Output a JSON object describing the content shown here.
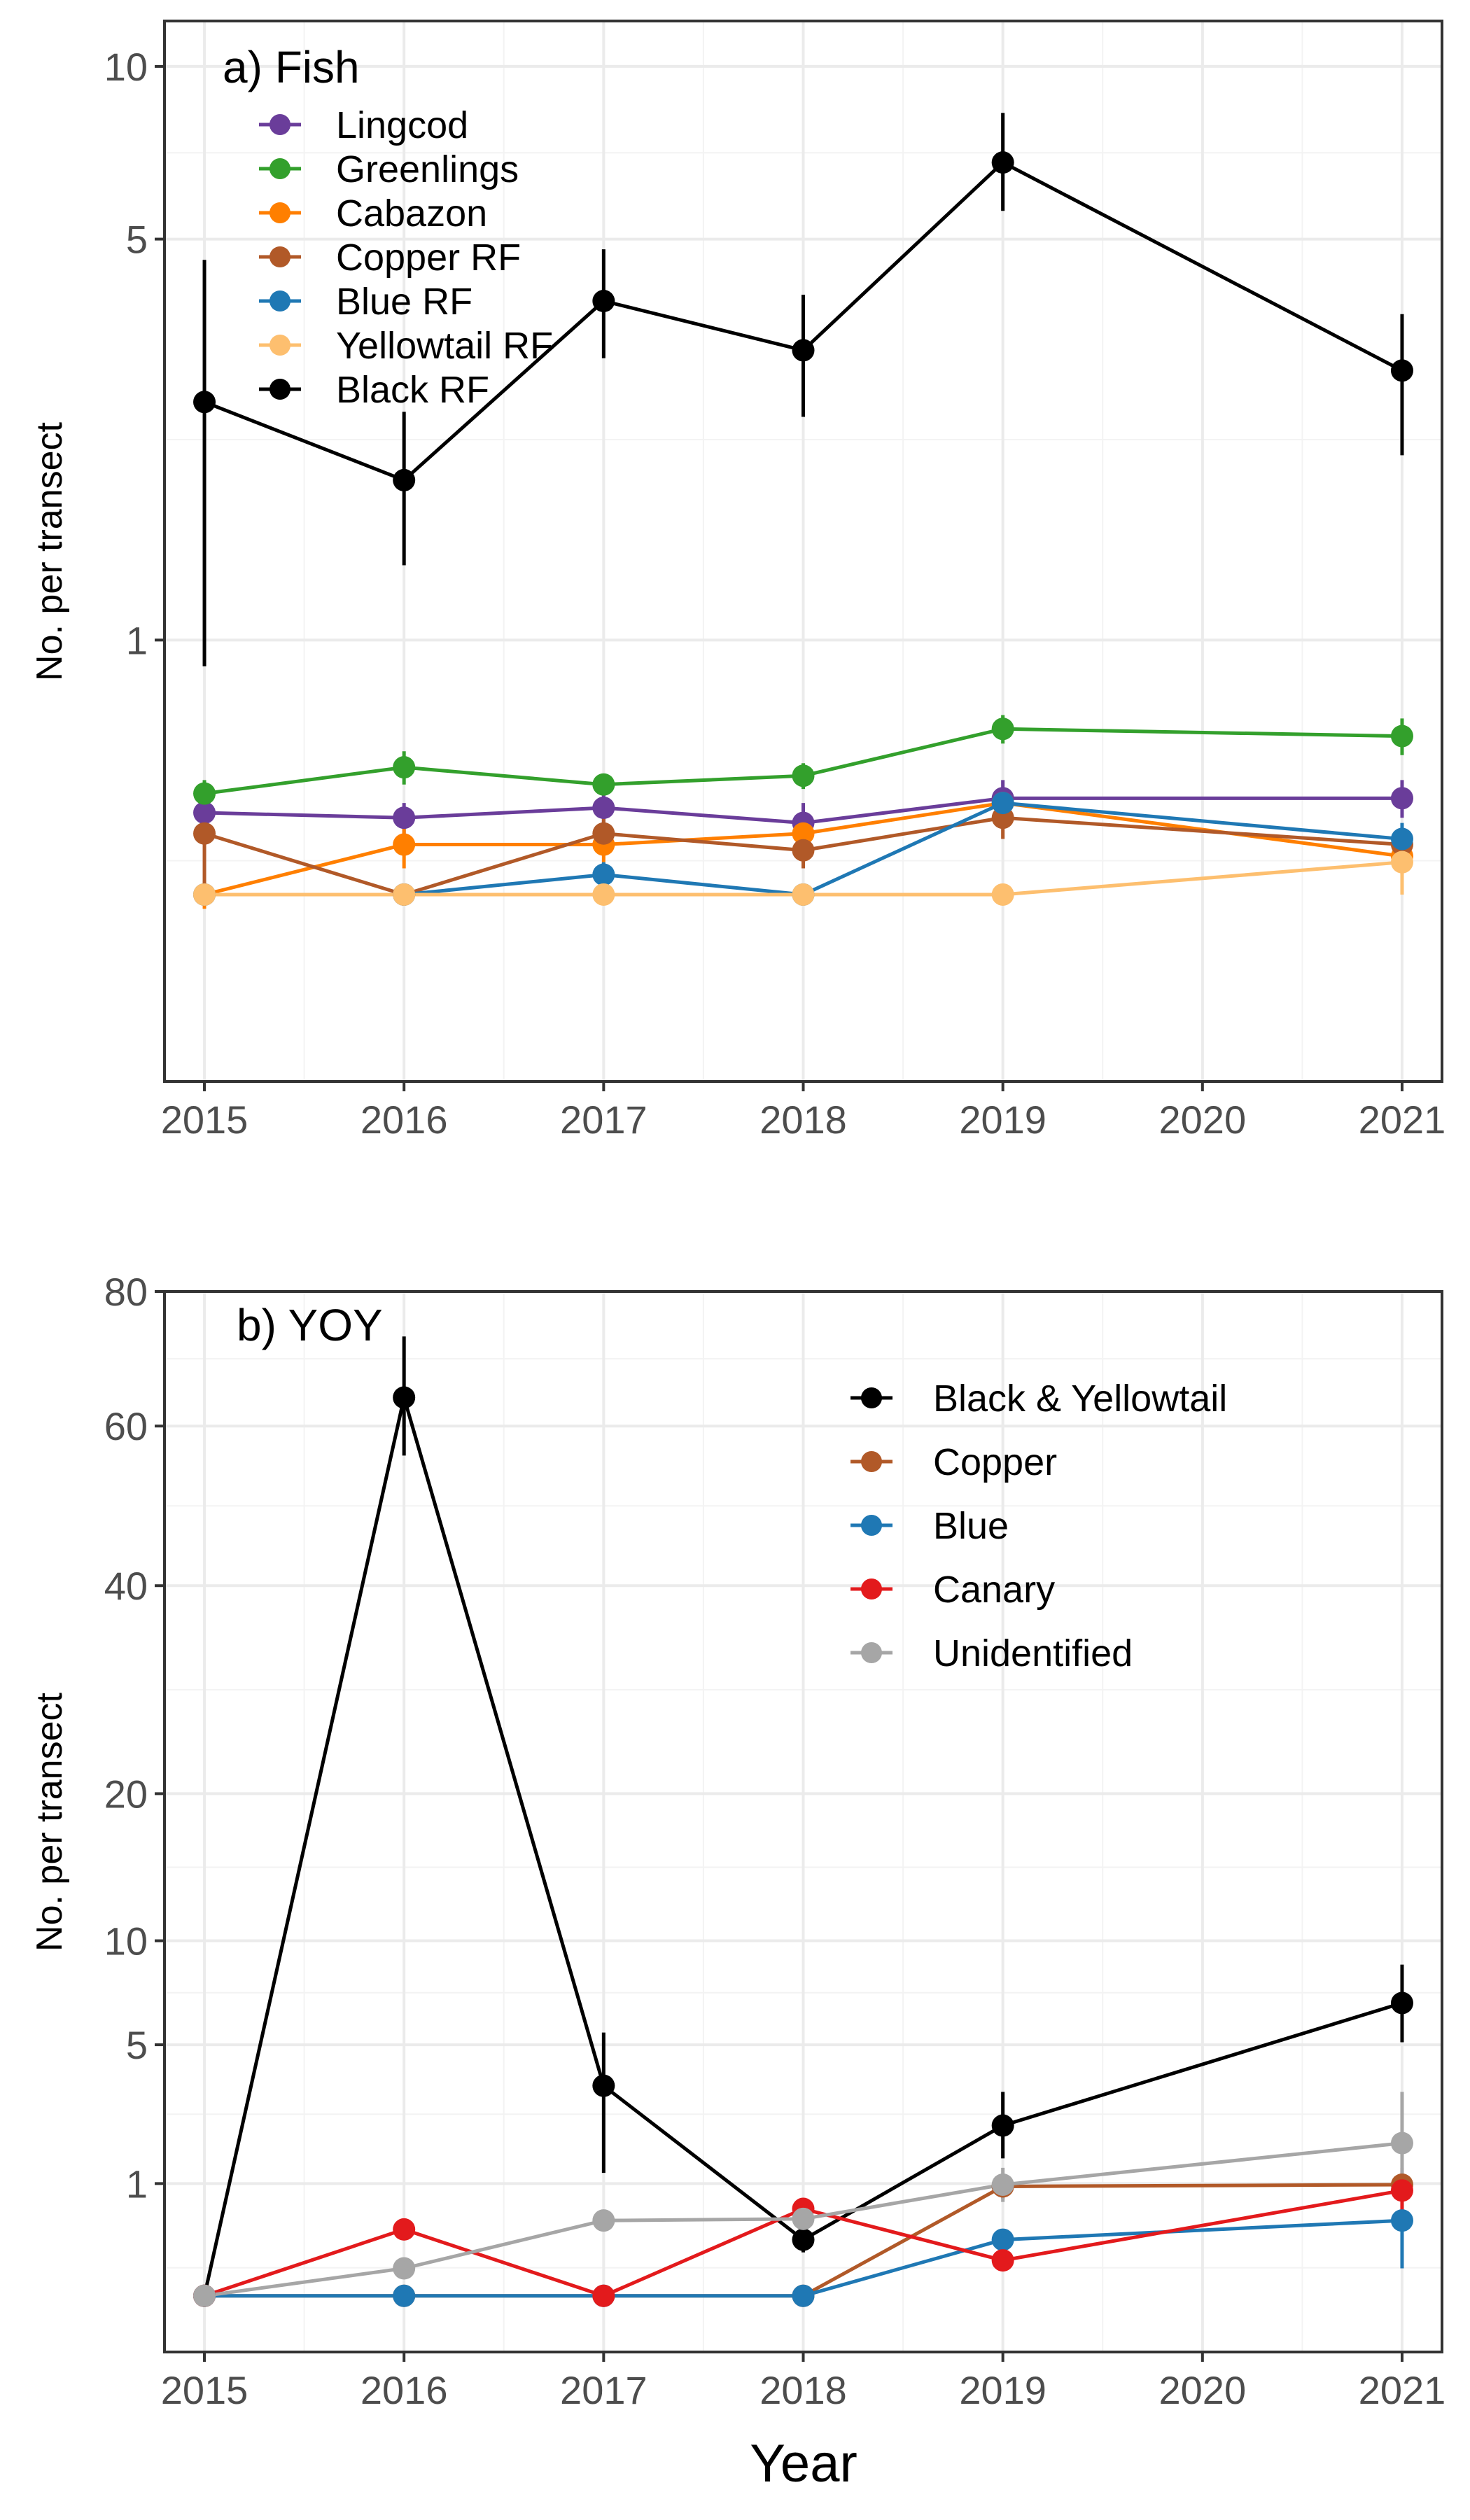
{
  "xlabel": "Year",
  "chart_data": [
    {
      "type": "line",
      "title": "a) Fish",
      "ylabel": "No. per transect",
      "x": [
        2015,
        2016,
        2017,
        2018,
        2019,
        2020,
        2021
      ],
      "xlim": [
        2014.8,
        2021.2
      ],
      "ylim": [
        0.17,
        12
      ],
      "yscale": "log10",
      "yticks": [
        1,
        5,
        10
      ],
      "ytick_labels": [
        "1",
        "5",
        "10"
      ],
      "legend_position": "top-left",
      "series": [
        {
          "name": "Lingcod",
          "color": "#6a3d9a",
          "points": [
            {
              "x": 2015,
              "y": 0.5,
              "lo": 0.47,
              "hi": 0.53
            },
            {
              "x": 2016,
              "y": 0.49,
              "lo": 0.46,
              "hi": 0.52
            },
            {
              "x": 2017,
              "y": 0.51,
              "lo": 0.48,
              "hi": 0.55
            },
            {
              "x": 2018,
              "y": 0.48,
              "lo": 0.44,
              "hi": 0.52
            },
            {
              "x": 2019,
              "y": 0.53,
              "lo": 0.49,
              "hi": 0.57
            },
            {
              "x": 2021,
              "y": 0.53,
              "lo": 0.49,
              "hi": 0.57
            }
          ]
        },
        {
          "name": "Greenlings",
          "color": "#33a02c",
          "points": [
            {
              "x": 2015,
              "y": 0.54,
              "lo": 0.51,
              "hi": 0.57
            },
            {
              "x": 2016,
              "y": 0.6,
              "lo": 0.56,
              "hi": 0.64
            },
            {
              "x": 2017,
              "y": 0.56,
              "lo": 0.54,
              "hi": 0.58
            },
            {
              "x": 2018,
              "y": 0.58,
              "lo": 0.55,
              "hi": 0.61
            },
            {
              "x": 2019,
              "y": 0.7,
              "lo": 0.66,
              "hi": 0.74
            },
            {
              "x": 2021,
              "y": 0.68,
              "lo": 0.63,
              "hi": 0.73
            }
          ]
        },
        {
          "name": "Cabazon",
          "color": "#ff7f00",
          "points": [
            {
              "x": 2015,
              "y": 0.36,
              "lo": 0.34,
              "hi": 0.38
            },
            {
              "x": 2016,
              "y": 0.44,
              "lo": 0.4,
              "hi": 0.48
            },
            {
              "x": 2017,
              "y": 0.44,
              "lo": 0.41,
              "hi": 0.47
            },
            {
              "x": 2018,
              "y": 0.46,
              "lo": 0.43,
              "hi": 0.49
            },
            {
              "x": 2019,
              "y": 0.52,
              "lo": 0.49,
              "hi": 0.55
            },
            {
              "x": 2021,
              "y": 0.42,
              "lo": 0.39,
              "hi": 0.45
            }
          ]
        },
        {
          "name": "Copper RF",
          "color": "#b15928",
          "points": [
            {
              "x": 2015,
              "y": 0.46,
              "lo": 0.36,
              "hi": 0.5
            },
            {
              "x": 2016,
              "y": 0.36,
              "lo": 0.35,
              "hi": 0.37
            },
            {
              "x": 2017,
              "y": 0.46,
              "lo": 0.43,
              "hi": 0.49
            },
            {
              "x": 2018,
              "y": 0.43,
              "lo": 0.4,
              "hi": 0.47
            },
            {
              "x": 2019,
              "y": 0.49,
              "lo": 0.45,
              "hi": 0.53
            },
            {
              "x": 2021,
              "y": 0.44,
              "lo": 0.41,
              "hi": 0.47
            }
          ]
        },
        {
          "name": "Blue RF",
          "color": "#1f78b4",
          "points": [
            {
              "x": 2015,
              "y": 0.36,
              "lo": 0.35,
              "hi": 0.37
            },
            {
              "x": 2016,
              "y": 0.36,
              "lo": 0.35,
              "hi": 0.37
            },
            {
              "x": 2017,
              "y": 0.39,
              "lo": 0.37,
              "hi": 0.41
            },
            {
              "x": 2018,
              "y": 0.36,
              "lo": 0.35,
              "hi": 0.37
            },
            {
              "x": 2019,
              "y": 0.52,
              "lo": 0.49,
              "hi": 0.55
            },
            {
              "x": 2021,
              "y": 0.45,
              "lo": 0.42,
              "hi": 0.48
            }
          ]
        },
        {
          "name": "Yellowtail RF",
          "color": "#fdbf6f",
          "points": [
            {
              "x": 2015,
              "y": 0.36,
              "lo": 0.35,
              "hi": 0.37
            },
            {
              "x": 2016,
              "y": 0.36,
              "lo": 0.35,
              "hi": 0.37
            },
            {
              "x": 2017,
              "y": 0.36,
              "lo": 0.35,
              "hi": 0.37
            },
            {
              "x": 2018,
              "y": 0.36,
              "lo": 0.35,
              "hi": 0.37
            },
            {
              "x": 2019,
              "y": 0.36,
              "lo": 0.35,
              "hi": 0.37
            },
            {
              "x": 2021,
              "y": 0.41,
              "lo": 0.36,
              "hi": 0.45
            }
          ]
        },
        {
          "name": "Black RF",
          "color": "#000000",
          "points": [
            {
              "x": 2015,
              "y": 2.6,
              "lo": 0.9,
              "hi": 4.6
            },
            {
              "x": 2016,
              "y": 1.9,
              "lo": 1.35,
              "hi": 2.5
            },
            {
              "x": 2017,
              "y": 3.9,
              "lo": 3.1,
              "hi": 4.8
            },
            {
              "x": 2018,
              "y": 3.2,
              "lo": 2.45,
              "hi": 4.0
            },
            {
              "x": 2019,
              "y": 6.8,
              "lo": 5.6,
              "hi": 8.3
            },
            {
              "x": 2021,
              "y": 2.95,
              "lo": 2.1,
              "hi": 3.7
            }
          ]
        }
      ]
    },
    {
      "type": "line",
      "title": "b) YOY",
      "ylabel": "No. per transect",
      "x": [
        2015,
        2016,
        2017,
        2018,
        2019,
        2020,
        2021
      ],
      "xlim": [
        2014.8,
        2021.2
      ],
      "ylim": [
        -0.25,
        80
      ],
      "yscale": "sqrt",
      "yticks": [
        1,
        5,
        10,
        20,
        40,
        60,
        80
      ],
      "ytick_labels": [
        "1",
        "5",
        "10",
        "20",
        "40",
        "60",
        "80"
      ],
      "legend_position": "top-right",
      "series": [
        {
          "name": "Black & Yellowtail",
          "color": "#000000",
          "points": [
            {
              "x": 2015,
              "y": 0,
              "lo": 0,
              "hi": 0
            },
            {
              "x": 2016,
              "y": 64,
              "lo": 56,
              "hi": 73
            },
            {
              "x": 2017,
              "y": 3.5,
              "lo": 1.2,
              "hi": 5.5
            },
            {
              "x": 2018,
              "y": 0.25,
              "lo": 0.15,
              "hi": 0.35
            },
            {
              "x": 2019,
              "y": 2.3,
              "lo": 1.5,
              "hi": 3.3
            },
            {
              "x": 2021,
              "y": 6.8,
              "lo": 5.1,
              "hi": 8.7
            }
          ]
        },
        {
          "name": "Copper",
          "color": "#b15928",
          "points": [
            {
              "x": 2015,
              "y": 0,
              "lo": 0,
              "hi": 0
            },
            {
              "x": 2016,
              "y": 0,
              "lo": 0,
              "hi": 0
            },
            {
              "x": 2017,
              "y": 0,
              "lo": 0,
              "hi": 0
            },
            {
              "x": 2018,
              "y": 0,
              "lo": 0,
              "hi": 0
            },
            {
              "x": 2019,
              "y": 0.95,
              "lo": 0.75,
              "hi": 1.15
            },
            {
              "x": 2021,
              "y": 0.98,
              "lo": 0.8,
              "hi": 1.2
            }
          ]
        },
        {
          "name": "Blue",
          "color": "#1f78b4",
          "points": [
            {
              "x": 2015,
              "y": 0,
              "lo": 0,
              "hi": 0
            },
            {
              "x": 2016,
              "y": 0,
              "lo": 0,
              "hi": 0
            },
            {
              "x": 2017,
              "y": 0,
              "lo": 0,
              "hi": 0
            },
            {
              "x": 2018,
              "y": 0,
              "lo": 0,
              "hi": 0
            },
            {
              "x": 2019,
              "y": 0.25,
              "lo": 0.17,
              "hi": 0.33
            },
            {
              "x": 2021,
              "y": 0.45,
              "lo": 0.06,
              "hi": 0.9
            }
          ]
        },
        {
          "name": "Canary",
          "color": "#e31a1c",
          "points": [
            {
              "x": 2015,
              "y": 0,
              "lo": 0,
              "hi": 0
            },
            {
              "x": 2016,
              "y": 0.35,
              "lo": 0.25,
              "hi": 0.45
            },
            {
              "x": 2017,
              "y": 0,
              "lo": 0,
              "hi": 0
            },
            {
              "x": 2018,
              "y": 0.6,
              "lo": 0.48,
              "hi": 0.72
            },
            {
              "x": 2019,
              "y": 0.1,
              "lo": 0.06,
              "hi": 0.14
            },
            {
              "x": 2021,
              "y": 0.88,
              "lo": 0.45,
              "hi": 1.3
            }
          ]
        },
        {
          "name": "Unidentified",
          "color": "#a6a6a6",
          "points": [
            {
              "x": 2015,
              "y": 0,
              "lo": 0,
              "hi": 0
            },
            {
              "x": 2016,
              "y": 0.06,
              "lo": 0.03,
              "hi": 0.09
            },
            {
              "x": 2017,
              "y": 0.45,
              "lo": 0.38,
              "hi": 0.52
            },
            {
              "x": 2018,
              "y": 0.47,
              "lo": 0.4,
              "hi": 0.54
            },
            {
              "x": 2019,
              "y": 0.98,
              "lo": 0.7,
              "hi": 1.3
            },
            {
              "x": 2021,
              "y": 1.85,
              "lo": 1.15,
              "hi": 3.3
            }
          ]
        }
      ]
    }
  ]
}
